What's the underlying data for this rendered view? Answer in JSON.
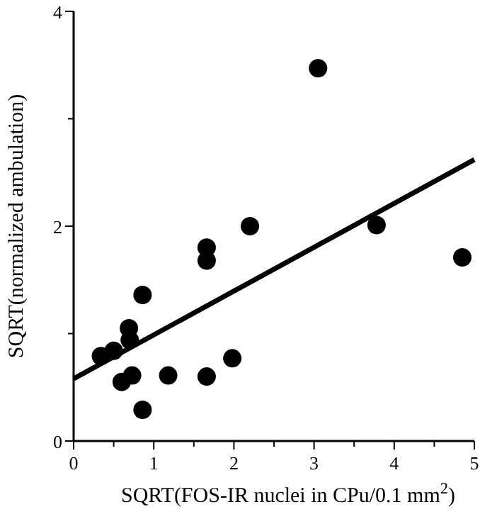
{
  "chart_data": {
    "type": "scatter",
    "xlabel": "SQRT(FOS-IR nuclei in CPu/0.1 mm$^{2}$)",
    "ylabel": "SQRT(normalized ambulation)",
    "xlim": [
      0,
      5
    ],
    "ylim": [
      0,
      4
    ],
    "xticks": [
      0,
      {
        "value": 0.5,
        "label": null
      },
      1,
      {
        "value": 1.5,
        "label": null
      },
      2,
      {
        "value": 2.5,
        "label": null
      },
      3,
      {
        "value": 3.5,
        "label": null
      },
      4,
      {
        "value": 4.5,
        "label": null
      },
      5
    ],
    "yticks": [
      0,
      {
        "value": 1,
        "label": null
      },
      2,
      {
        "value": 3,
        "label": null
      },
      4
    ],
    "grid": false,
    "marker": "circle",
    "series": [
      {
        "color": "#000000",
        "x": [
          0.34,
          0.5,
          0.69,
          0.7,
          0.86,
          0.6,
          0.73,
          0.86,
          1.18,
          1.66,
          1.66,
          1.66,
          1.98,
          2.2,
          3.05,
          3.78,
          4.85
        ],
        "values": [
          0.79,
          0.84,
          1.05,
          0.94,
          1.36,
          0.55,
          0.61,
          0.29,
          0.61,
          1.8,
          1.68,
          0.6,
          0.77,
          2.0,
          3.47,
          2.01,
          1.71
        ]
      },
      {
        "type": "line",
        "color": "#000000",
        "x": [
          0,
          5
        ],
        "values": [
          0.58,
          2.62
        ],
        "line_style": "solid",
        "marker": "none"
      }
    ]
  }
}
